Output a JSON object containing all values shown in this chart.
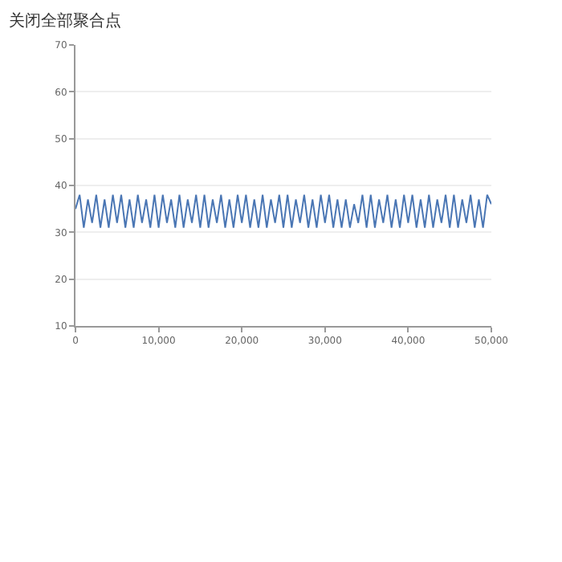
{
  "chart_data": {
    "type": "line",
    "title": "关闭全部聚合点",
    "x": [
      0,
      500,
      1000,
      1500,
      2000,
      2500,
      3000,
      3500,
      4000,
      4500,
      5000,
      5500,
      6000,
      6500,
      7000,
      7500,
      8000,
      8500,
      9000,
      9500,
      10000,
      10500,
      11000,
      11500,
      12000,
      12500,
      13000,
      13500,
      14000,
      14500,
      15000,
      15500,
      16000,
      16500,
      17000,
      17500,
      18000,
      18500,
      19000,
      19500,
      20000,
      20500,
      21000,
      21500,
      22000,
      22500,
      23000,
      23500,
      24000,
      24500,
      25000,
      25500,
      26000,
      26500,
      27000,
      27500,
      28000,
      28500,
      29000,
      29500,
      30000,
      30500,
      31000,
      31500,
      32000,
      32500,
      33000,
      33500,
      34000,
      34500,
      35000,
      35500,
      36000,
      36500,
      37000,
      37500,
      38000,
      38500,
      39000,
      39500,
      40000,
      40500,
      41000,
      41500,
      42000,
      42500,
      43000,
      43500,
      44000,
      44500,
      45000,
      45500,
      46000,
      46500,
      47000,
      47500,
      48000,
      48500,
      49000,
      49500,
      50000
    ],
    "series": [
      {
        "color": "#4a76b4",
        "values": [
          35,
          38,
          31,
          37,
          32,
          38,
          31,
          37,
          31,
          38,
          32,
          38,
          31,
          37,
          31,
          38,
          32,
          37,
          31,
          38,
          31,
          38,
          32,
          37,
          31,
          38,
          31,
          37,
          32,
          38,
          31,
          38,
          31,
          37,
          32,
          38,
          31,
          37,
          31,
          38,
          32,
          38,
          31,
          37,
          31,
          38,
          31,
          37,
          32,
          38,
          31,
          38,
          31,
          37,
          32,
          38,
          31,
          37,
          31,
          38,
          32,
          38,
          31,
          37,
          31,
          37,
          31,
          36,
          32,
          38,
          31,
          38,
          31,
          37,
          32,
          38,
          31,
          37,
          31,
          38,
          32,
          38,
          31,
          37,
          31,
          38,
          31,
          37,
          32,
          38,
          31,
          38,
          31,
          37,
          32,
          38,
          31,
          37,
          31,
          38,
          36
        ]
      }
    ],
    "xlim": [
      0,
      50000
    ],
    "xticks": [
      0,
      {
        "value": 10000,
        "label": "10,000"
      },
      {
        "value": 20000,
        "label": "20,000"
      },
      {
        "value": 30000,
        "label": "30,000"
      },
      {
        "value": 40000,
        "label": "40,000"
      },
      {
        "value": 50000,
        "label": "50,000"
      }
    ],
    "ylim": [
      10,
      70
    ],
    "yticks": [
      10,
      20,
      30,
      40,
      50,
      60,
      70
    ],
    "grid": "y"
  }
}
